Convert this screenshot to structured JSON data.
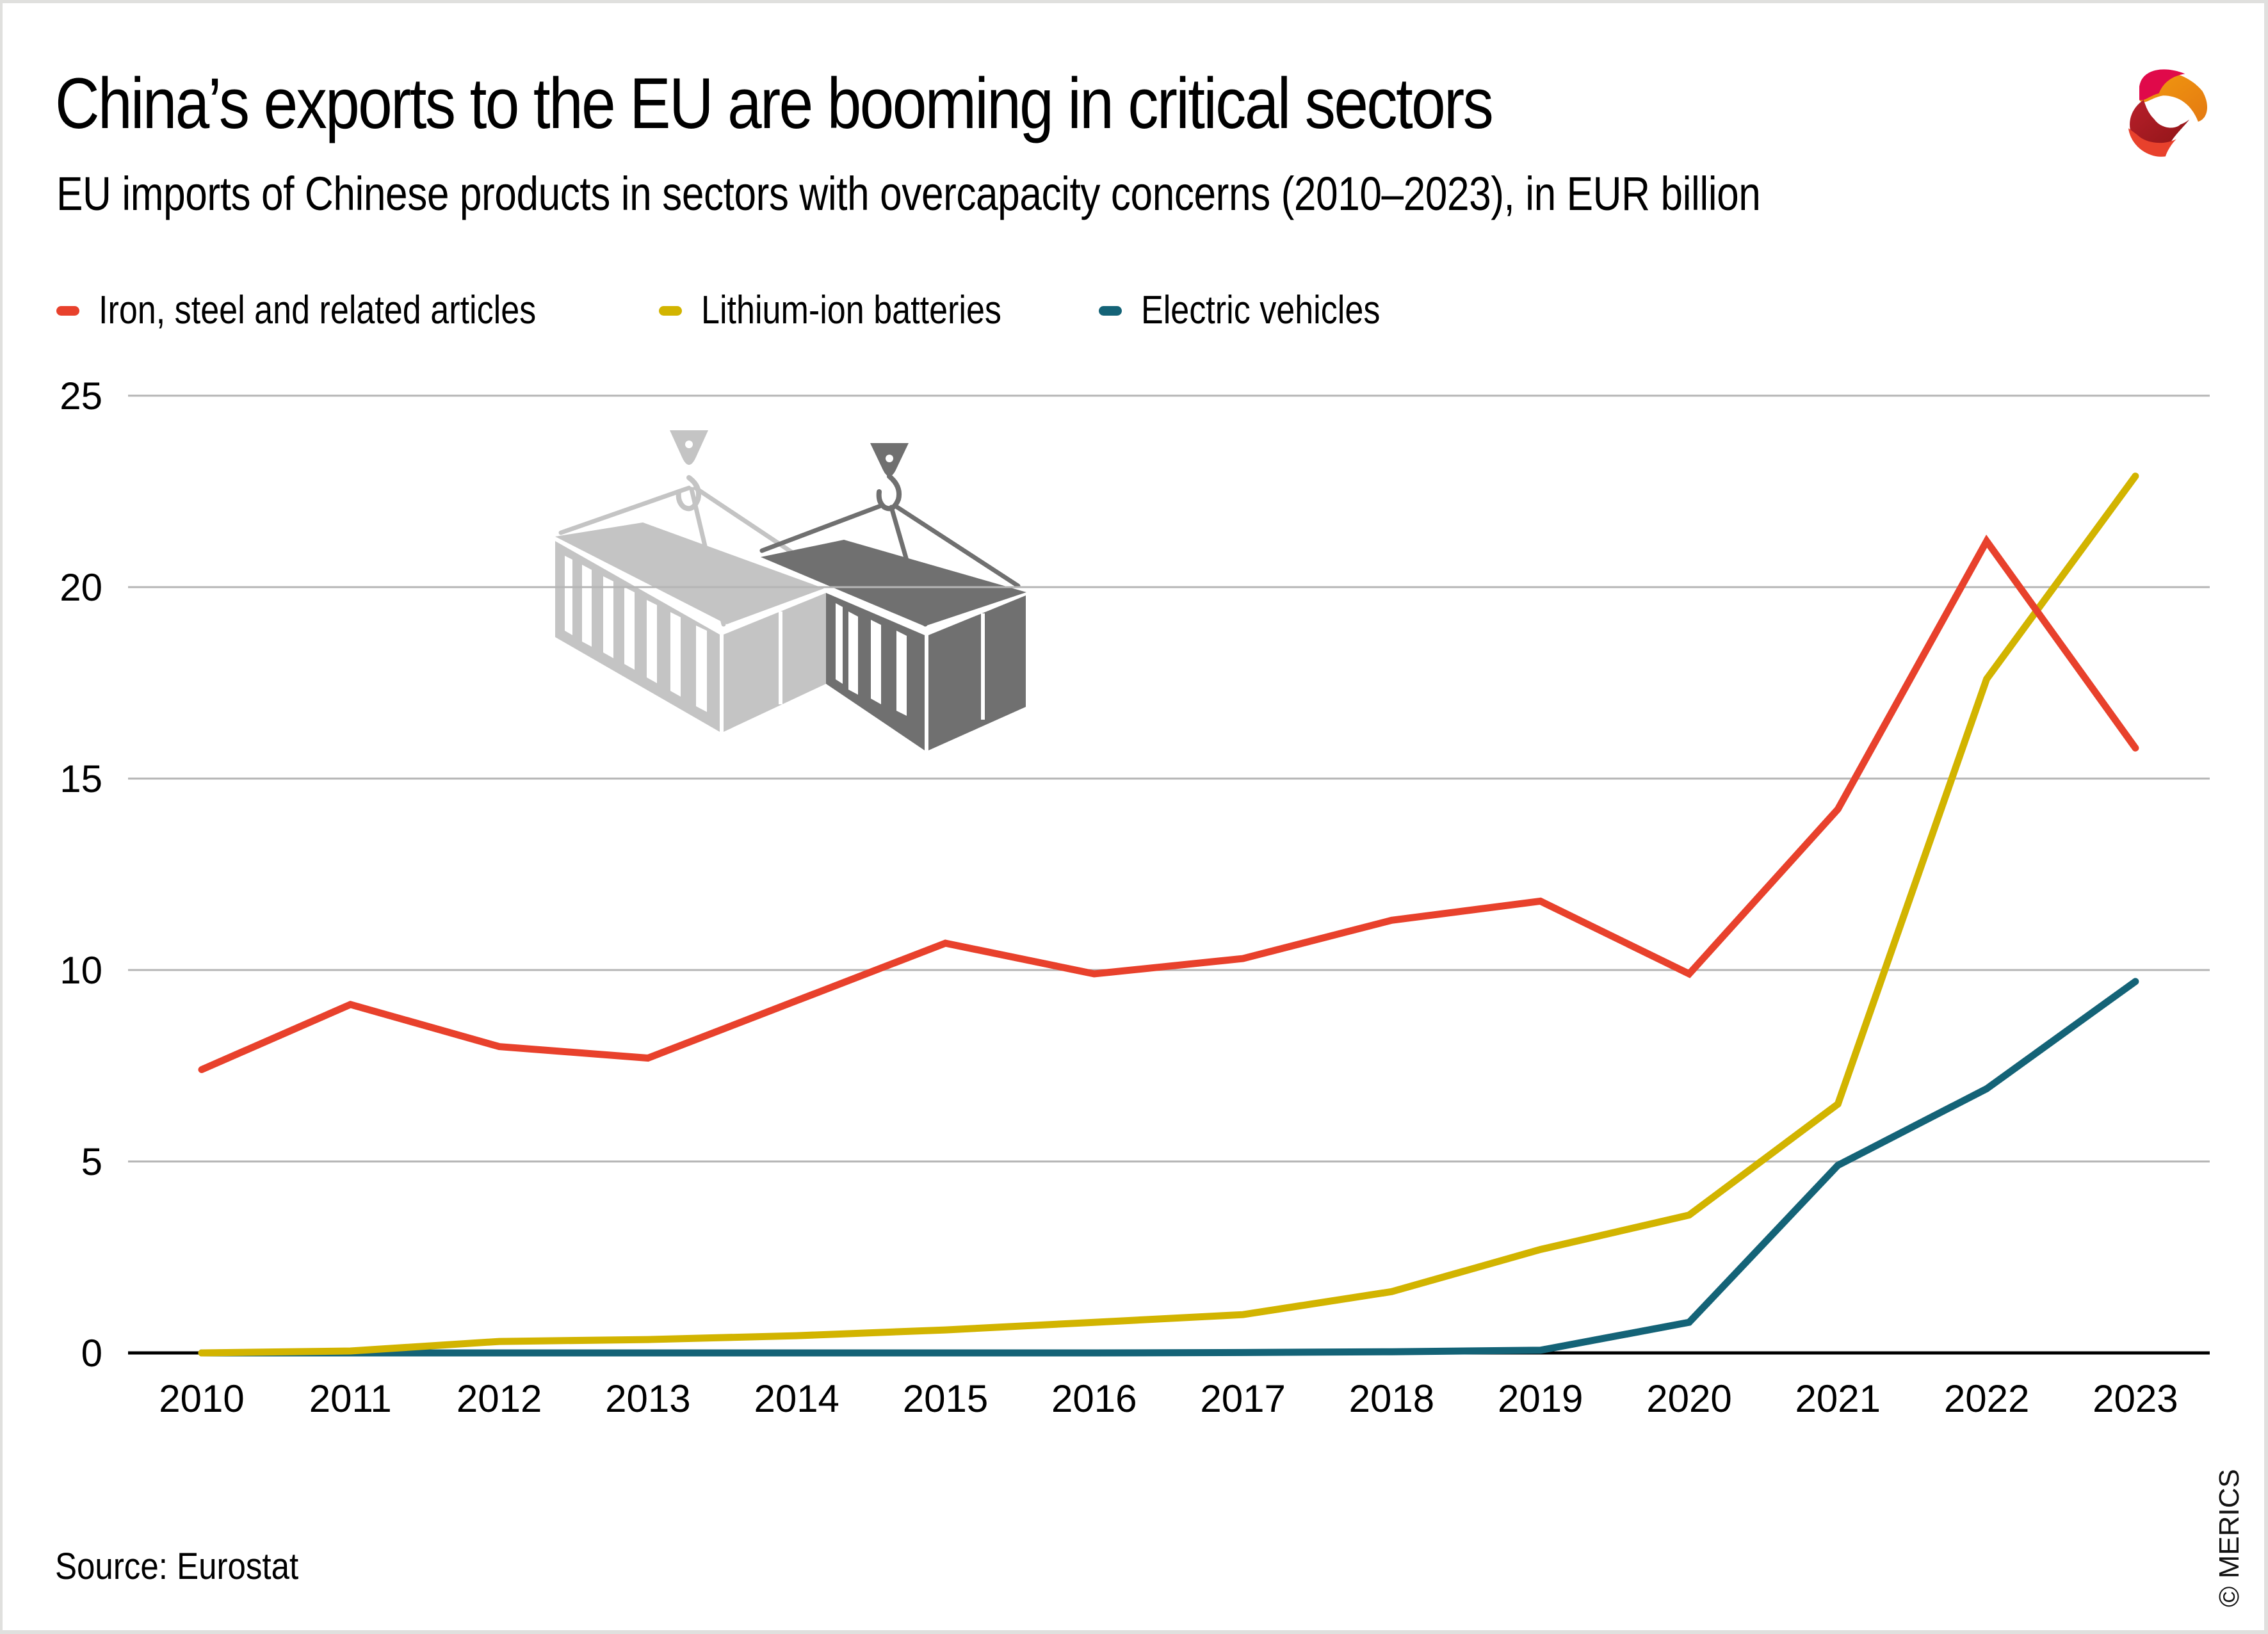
{
  "header": {
    "title": "China’s exports to the EU are booming in critical sectors",
    "subtitle": "EU imports of Chinese products in sectors with overcapacity concerns (2010–2023), in EUR billion",
    "logo_icon": "merics-ribbon-logo"
  },
  "colors": {
    "iron_steel": "#E8412C",
    "batteries": "#D2B400",
    "ev": "#146377",
    "grid": "#B5B5B5",
    "axis": "#000000",
    "container_light": "#C4C4C4",
    "container_dark": "#707070"
  },
  "legend": [
    {
      "label": "Iron, steel and related articles",
      "color": "#E8412C"
    },
    {
      "label": "Lithium-ion batteries",
      "color": "#D2B400"
    },
    {
      "label": "Electric vehicles",
      "color": "#146377"
    }
  ],
  "illustration": {
    "icon": "shipping-containers-on-crane-hooks-icon"
  },
  "footer": {
    "source": "Source: Eurostat",
    "copyright": "© MERICS"
  },
  "chart_data": {
    "type": "line",
    "title": "China’s exports to the EU are booming in critical sectors",
    "subtitle": "EU imports of Chinese products in sectors with overcapacity concerns (2010–2023), in EUR billion",
    "xlabel": "",
    "ylabel": "EUR billion",
    "x": [
      "2010",
      "2011",
      "2012",
      "2013",
      "2014",
      "2015",
      "2016",
      "2017",
      "2018",
      "2019",
      "2020",
      "2021",
      "2022",
      "2023"
    ],
    "ylim": [
      0,
      25
    ],
    "yticks": [
      0,
      5,
      10,
      15,
      20,
      25
    ],
    "grid": true,
    "legend_position": "top-left",
    "series": [
      {
        "name": "Iron, steel and related articles",
        "color": "#E8412C",
        "values": [
          7.4,
          9.1,
          8.0,
          7.7,
          9.2,
          10.7,
          9.9,
          10.3,
          11.3,
          11.8,
          9.9,
          14.2,
          21.2,
          15.8
        ]
      },
      {
        "name": "Lithium-ion batteries",
        "color": "#D2B400",
        "values": [
          0.0,
          0.05,
          0.3,
          0.35,
          0.45,
          0.6,
          0.8,
          1.0,
          1.6,
          2.7,
          3.6,
          6.5,
          17.6,
          22.9
        ]
      },
      {
        "name": "Electric vehicles",
        "color": "#146377",
        "values": [
          0.0,
          0.0,
          0.0,
          0.0,
          0.0,
          0.0,
          0.0,
          0.01,
          0.03,
          0.07,
          0.8,
          4.9,
          6.9,
          9.7
        ]
      }
    ]
  }
}
